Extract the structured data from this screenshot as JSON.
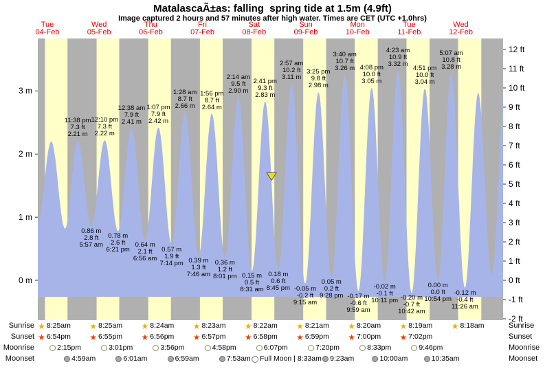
{
  "title": "MatalascaÃ±as: falling  spring tide at 1.5m (4.9ft)",
  "subtitle": "Image captured 2 hours and 57 minutes after high water. Times are CET (UTC +1.0hrs)",
  "colors": {
    "day_band": "#ffffc8",
    "night_band": "#b0b0b0",
    "tide_fill": "#a7b4e8",
    "day_label": "#e60000",
    "marker": "#ece400",
    "sunrise_star": "#e8b000",
    "sunset_star": "#e04400"
  },
  "chart_data": {
    "type": "area",
    "title": "MatalascaÃ±as tide curve, heights in m (left axis) and ft (right axis)",
    "x_axis_days": [
      {
        "name": "Tue",
        "date": "04-Feb"
      },
      {
        "name": "Wed",
        "date": "05-Feb"
      },
      {
        "name": "Thu",
        "date": "06-Feb"
      },
      {
        "name": "Fri",
        "date": "07-Feb"
      },
      {
        "name": "Sat",
        "date": "08-Feb"
      },
      {
        "name": "Sun",
        "date": "09-Feb"
      },
      {
        "name": "Mon",
        "date": "10-Feb"
      },
      {
        "name": "Tue",
        "date": "11-Feb"
      },
      {
        "name": "Wed",
        "date": "12-Feb"
      }
    ],
    "y_axis_left_labels": [
      "3 m",
      "2 m",
      "1 m",
      "0 m"
    ],
    "y_axis_right_labels": [
      "12 ft",
      "11 ft",
      "10 ft",
      "9 ft",
      "8 ft",
      "7 ft",
      "6 ft",
      "5 ft",
      "4 ft",
      "3 ft",
      "2 ft",
      "1 ft",
      "0 ft",
      "-1 ft",
      "-2 ft"
    ],
    "ylim_left_m": [
      -2.1,
      12.5
    ],
    "tide_events": [
      {
        "day": 0,
        "time": "11:38 pm",
        "ft": "7.3 ft",
        "m": "2.21 m",
        "type": "high"
      },
      {
        "day": 1,
        "time": "5:57 am",
        "ft": "2.8 ft",
        "m": "0.86 m",
        "type": "low"
      },
      {
        "day": 1,
        "time": "12:10 pm",
        "ft": "7.3 ft",
        "m": "2.22 m",
        "type": "high"
      },
      {
        "day": 1,
        "time": "6:21 pm",
        "ft": "2.6 ft",
        "m": "0.78 m",
        "type": "low"
      },
      {
        "day": 2,
        "time": "12:38 am",
        "ft": "7.9 ft",
        "m": "2.41 m",
        "type": "high"
      },
      {
        "day": 2,
        "time": "6:56 am",
        "ft": "2.1 ft",
        "m": "0.64 m",
        "type": "low"
      },
      {
        "day": 2,
        "time": "1:07 pm",
        "ft": "7.9 ft",
        "m": "2.42 m",
        "type": "high"
      },
      {
        "day": 2,
        "time": "7:14 pm",
        "ft": "1.9 ft",
        "m": "0.57 m",
        "type": "low"
      },
      {
        "day": 3,
        "time": "1:28 am",
        "ft": "8.7 ft",
        "m": "2.66 m",
        "type": "high"
      },
      {
        "day": 3,
        "time": "7:46 am",
        "ft": "1.3 ft",
        "m": "0.39 m",
        "type": "low"
      },
      {
        "day": 3,
        "time": "1:56 pm",
        "ft": "8.7 ft",
        "m": "2.64 m",
        "type": "high"
      },
      {
        "day": 3,
        "time": "8:01 pm",
        "ft": "1.2 ft",
        "m": "0.36 m",
        "type": "low"
      },
      {
        "day": 4,
        "time": "2:14 am",
        "ft": "9.5 ft",
        "m": "2.90 m",
        "type": "high"
      },
      {
        "day": 4,
        "time": "8:31 am",
        "ft": "0.5 ft",
        "m": "0.15 m",
        "type": "low"
      },
      {
        "day": 4,
        "time": "2:41 pm",
        "ft": "9.3 ft",
        "m": "2.83 m",
        "type": "high"
      },
      {
        "day": 4,
        "time": "8:45 pm",
        "ft": "0.6 ft",
        "m": "0.18 m",
        "type": "low"
      },
      {
        "day": 5,
        "time": "2:57 am",
        "ft": "10.2 ft",
        "m": "3.11 m",
        "type": "high"
      },
      {
        "day": 5,
        "time": "9:15 am",
        "ft": "-0.2 ft",
        "m": "-0.05 m",
        "type": "low"
      },
      {
        "day": 5,
        "time": "3:25 pm",
        "ft": "9.8 ft",
        "m": "2.98 m",
        "type": "high"
      },
      {
        "day": 5,
        "time": "9:28 pm",
        "ft": "0.2 ft",
        "m": "0.05 m",
        "type": "low"
      },
      {
        "day": 6,
        "time": "3:40 am",
        "ft": "10.7 ft",
        "m": "3.26 m",
        "type": "high"
      },
      {
        "day": 6,
        "time": "9:59 am",
        "ft": "-0.6 ft",
        "m": "-0.17 m",
        "type": "low"
      },
      {
        "day": 6,
        "time": "4:08 pm",
        "ft": "10.0 ft",
        "m": "3.05 m",
        "type": "high"
      },
      {
        "day": 6,
        "time": "10:11 pm",
        "ft": "-0.1 ft",
        "m": "-0.02 m",
        "type": "low"
      },
      {
        "day": 7,
        "time": "4:23 am",
        "ft": "10.9 ft",
        "m": "3.32 m",
        "type": "high"
      },
      {
        "day": 7,
        "time": "10:42 am",
        "ft": "-0.7 ft",
        "m": "-0.20 m",
        "type": "low"
      },
      {
        "day": 7,
        "time": "4:51 pm",
        "ft": "10.0 ft",
        "m": "3.04 m",
        "type": "high"
      },
      {
        "day": 7,
        "time": "10:54 pm",
        "ft": "0.0 ft",
        "m": "0.00 m",
        "type": "low"
      },
      {
        "day": 8,
        "time": "5:07 am",
        "ft": "10.8 ft",
        "m": "3.28 m",
        "type": "high"
      },
      {
        "day": 8,
        "time": "11:26 am",
        "ft": "-0.4 ft",
        "m": "-0.12 m",
        "type": "low"
      }
    ],
    "current_marker": {
      "after_high_tide_day": 4,
      "after_high_tide_time": "2:41 pm",
      "hours_after_high": 2.95
    }
  },
  "astro": {
    "row_labels": [
      "Sunrise",
      "Sunset",
      "Moonrise",
      "Moonset"
    ],
    "sunrise": [
      "8:25am",
      "8:25am",
      "8:24am",
      "8:23am",
      "8:22am",
      "8:21am",
      "8:20am",
      "8:19am",
      "8:18am"
    ],
    "sunset": [
      "6:54pm",
      "6:55pm",
      "6:56pm",
      "6:57pm",
      "6:58pm",
      "6:59pm",
      "7:00pm",
      "7:02pm"
    ],
    "moonrise": [
      "2:15pm",
      "3:01pm",
      "3:56pm",
      "4:58pm",
      "6:07pm",
      "7:20pm",
      "8:33pm",
      "9:46pm"
    ],
    "moonset": [
      "4:59am",
      "6:01am",
      "6:59am",
      "7:53am",
      "Full Moon | 8:33am",
      "9:23am",
      "10:00am",
      "10:35am"
    ]
  }
}
